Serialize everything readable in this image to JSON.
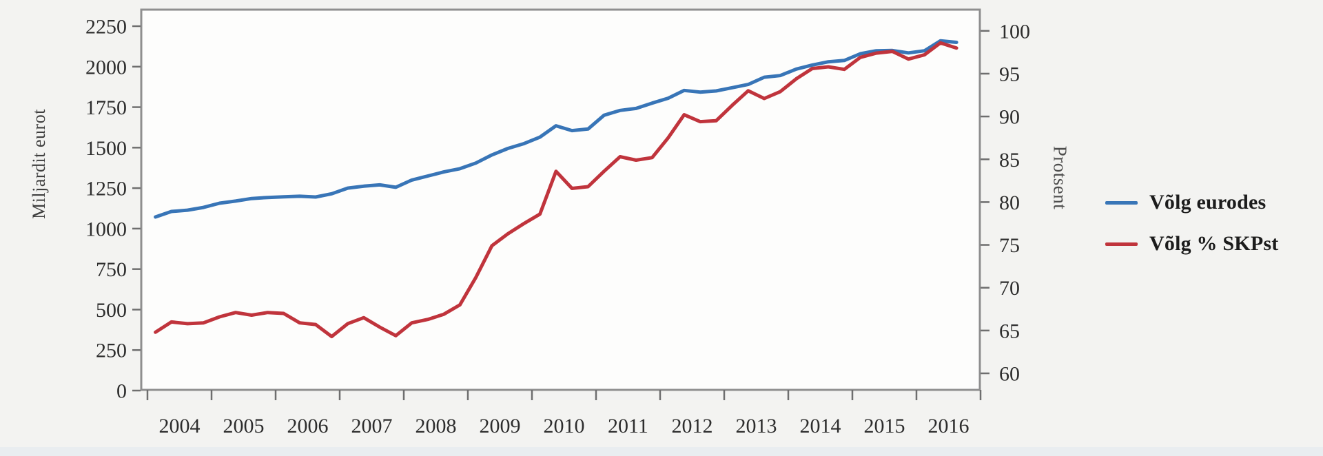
{
  "chart_data": {
    "type": "line",
    "title": "",
    "frequency": "quarterly",
    "x_start": "2004-Q1",
    "x_end": "2016-Q3",
    "x_tick_years": [
      "2004",
      "2005",
      "2006",
      "2007",
      "2008",
      "2009",
      "2010",
      "2011",
      "2012",
      "2013",
      "2014",
      "2015",
      "2016"
    ],
    "grid": "off",
    "legend_position": "right-outside",
    "left_axis": {
      "label": "Miljardit eurot",
      "ticks": [
        0,
        250,
        500,
        750,
        1000,
        1250,
        1500,
        1750,
        2000,
        2250
      ],
      "range": [
        0,
        2250
      ]
    },
    "right_axis": {
      "label": "Protsent",
      "ticks": [
        60,
        65,
        70,
        75,
        80,
        85,
        90,
        95,
        100
      ],
      "range": [
        60,
        100
      ]
    },
    "series": [
      {
        "name": "Võlg eurodes",
        "axis": "left",
        "color": "#3875b7",
        "values": [
          1072,
          1106,
          1114,
          1131,
          1157,
          1170,
          1186,
          1192,
          1196,
          1200,
          1195,
          1215,
          1250,
          1262,
          1270,
          1255,
          1300,
          1325,
          1350,
          1370,
          1405,
          1455,
          1495,
          1525,
          1565,
          1635,
          1605,
          1615,
          1700,
          1730,
          1742,
          1775,
          1805,
          1853,
          1843,
          1850,
          1870,
          1890,
          1935,
          1945,
          1985,
          2010,
          2030,
          2038,
          2080,
          2098,
          2100,
          2085,
          2098,
          2160,
          2150
        ]
      },
      {
        "name": "Võlg % SKPst",
        "axis": "right",
        "color": "#c0343c",
        "values": [
          64.8,
          66.0,
          65.8,
          65.9,
          66.6,
          67.1,
          66.8,
          67.1,
          67.0,
          65.9,
          65.7,
          64.3,
          65.8,
          66.5,
          65.4,
          64.4,
          65.9,
          66.3,
          66.9,
          68.0,
          71.2,
          74.9,
          76.3,
          77.5,
          78.6,
          83.6,
          81.6,
          81.8,
          83.6,
          85.3,
          84.9,
          85.2,
          87.5,
          90.2,
          89.4,
          89.5,
          91.3,
          93.0,
          92.1,
          92.9,
          94.4,
          95.6,
          95.8,
          95.5,
          96.9,
          97.4,
          97.6,
          96.7,
          97.2,
          98.6,
          98.0
        ]
      }
    ]
  }
}
